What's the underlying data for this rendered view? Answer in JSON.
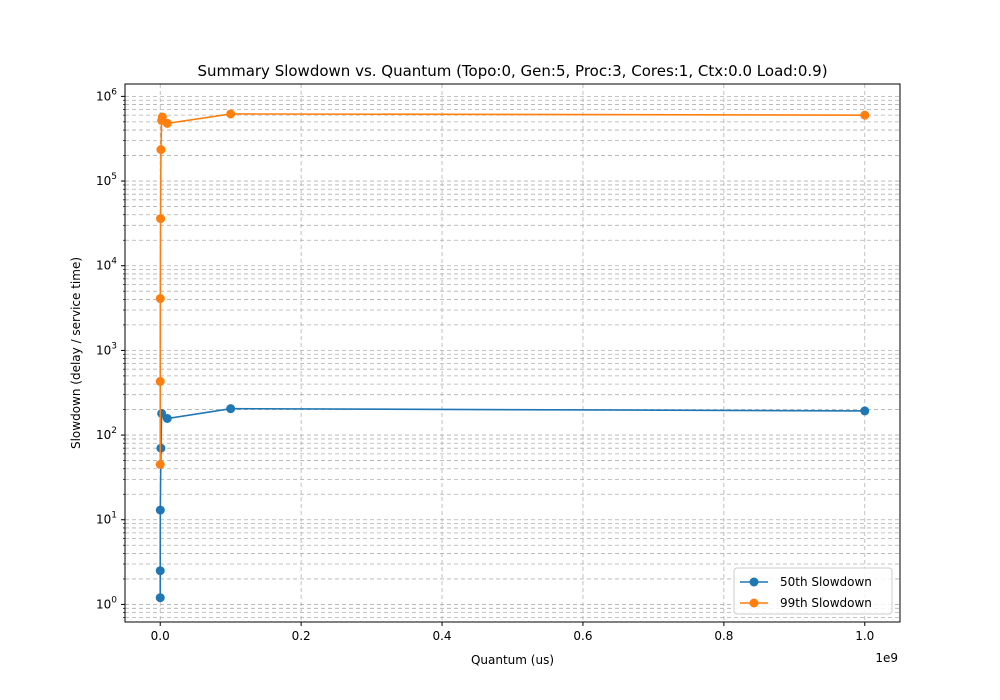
{
  "chart_data": {
    "type": "line",
    "title": "Summary Slowdown vs. Quantum (Topo:0, Gen:5, Proc:3, Cores:1, Ctx:0.0 Load:0.9)",
    "xlabel": "Quantum (us)",
    "ylabel": "Slowdown (delay / service time)",
    "x_offset_label": "1e9",
    "xlim": [
      -0.05,
      1.05
    ],
    "ylim": [
      0.62,
      1400000
    ],
    "yscale": "log",
    "grid": true,
    "legend_position": "lower-right",
    "x_ticks": [
      {
        "value": 0.0,
        "label": "0.0"
      },
      {
        "value": 0.2,
        "label": "0.2"
      },
      {
        "value": 0.4,
        "label": "0.4"
      },
      {
        "value": 0.6,
        "label": "0.6"
      },
      {
        "value": 0.8,
        "label": "0.8"
      },
      {
        "value": 1.0,
        "label": "1.0"
      }
    ],
    "y_ticks": [
      {
        "value": 1,
        "base": "10",
        "exp": "0"
      },
      {
        "value": 10,
        "base": "10",
        "exp": "1"
      },
      {
        "value": 100,
        "base": "10",
        "exp": "2"
      },
      {
        "value": 1000,
        "base": "10",
        "exp": "3"
      },
      {
        "value": 10000,
        "base": "10",
        "exp": "4"
      },
      {
        "value": 100000,
        "base": "10",
        "exp": "5"
      },
      {
        "value": 1000000,
        "base": "10",
        "exp": "6"
      }
    ],
    "series": [
      {
        "name": "50th Slowdown",
        "color": "#1f77b4",
        "points": [
          {
            "x": 1e-06,
            "y": 1.2
          },
          {
            "x": 1e-05,
            "y": 2.5
          },
          {
            "x": 0.0001,
            "y": 13
          },
          {
            "x": 0.001,
            "y": 70
          },
          {
            "x": 0.002,
            "y": 180
          },
          {
            "x": 0.01,
            "y": 157
          },
          {
            "x": 0.1,
            "y": 205
          },
          {
            "x": 1.0,
            "y": 193
          }
        ]
      },
      {
        "name": "99th Slowdown",
        "color": "#ff7f0e",
        "points": [
          {
            "x": 1e-06,
            "y": 45
          },
          {
            "x": 1e-05,
            "y": 430
          },
          {
            "x": 0.0001,
            "y": 4100
          },
          {
            "x": 0.0005,
            "y": 36000
          },
          {
            "x": 0.001,
            "y": 235000
          },
          {
            "x": 0.002,
            "y": 520000
          },
          {
            "x": 0.003,
            "y": 570000
          },
          {
            "x": 0.01,
            "y": 480000
          },
          {
            "x": 0.1,
            "y": 620000
          },
          {
            "x": 1.0,
            "y": 600000
          }
        ]
      }
    ]
  }
}
